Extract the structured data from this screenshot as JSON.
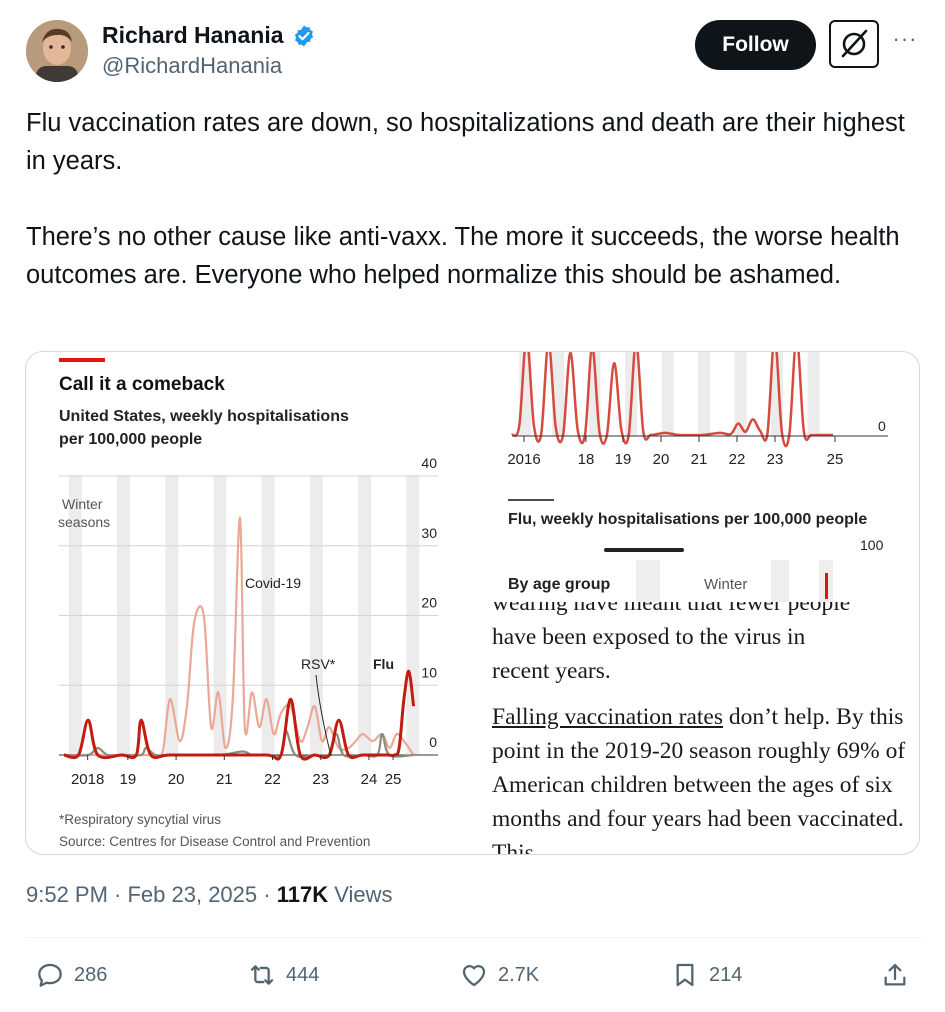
{
  "user": {
    "display_name": "Richard Hanania",
    "handle": "@RichardHanania",
    "avatar_icon": "avatar-photo",
    "verified_color": "#1d9bf0"
  },
  "buttons": {
    "follow_label": "Follow",
    "grok_icon": "grok-icon",
    "more_label": "···"
  },
  "tweet": {
    "paragraphs": [
      "Flu vaccination rates are down, so hospitalizations and death are their highest in years.",
      "There’s no other cause like anti-vaxx. The more it succeeds, the worse health outcomes are. Everyone who helped normalize this should be ashamed."
    ]
  },
  "media": {
    "left_chart": {
      "title": "Call it a comeback",
      "subtitle_line1": "United States, weekly hospitalisations",
      "subtitle_line2": "per 100,000 people",
      "winter_line1": "Winter",
      "winter_line2": "seasons",
      "footnote": "*Respiratory syncytial virus",
      "source": "Source: Centres for Disease Control and Prevention"
    },
    "right_chart": {
      "title": "Flu, weekly hospitalisations per 100,000 people",
      "by_age": "By age group",
      "winter": "Winter",
      "top_tick": "100"
    },
    "article": {
      "cut_line": "wearing have meant that fewer people",
      "line1": "have been exposed to the virus in",
      "line2": "recent years.",
      "link_text": "Falling vaccination rates",
      "para2_rest": " don’t help. By this point in the 2019-20 season roughly 69% of American children between the ages of six months and four years had been vaccinated. This"
    }
  },
  "chart_data": [
    {
      "type": "line",
      "title": "Call it a comeback",
      "subtitle": "United States, weekly hospitalisations per 100,000 people",
      "x_ticks": [
        "2018",
        "19",
        "20",
        "21",
        "22",
        "23",
        "24",
        "25"
      ],
      "y_ticks": [
        "40",
        "30",
        "20",
        "10",
        "0"
      ],
      "ylim": [
        0,
        40
      ],
      "annotations": [
        "Covid-19",
        "RSV*",
        "Flu"
      ],
      "shaded": "Winter seasons",
      "series": [
        {
          "name": "Covid-19",
          "color": "#eba897",
          "x": [
            2017.8,
            2018.0,
            2018.5,
            2019.0,
            2019.5,
            2019.7,
            2019.85,
            2020.0,
            2020.2,
            2020.35,
            2020.5,
            2020.7,
            2020.85,
            2021.0,
            2021.15,
            2021.3,
            2021.45,
            2021.55,
            2021.7,
            2021.85,
            2022.0,
            2022.15,
            2022.3,
            2022.5,
            2022.7,
            2022.85,
            2023.0,
            2023.15,
            2023.3,
            2023.5,
            2023.7,
            2023.85,
            2024.0,
            2024.2,
            2024.4,
            2024.55,
            2024.7,
            2024.85,
            2025.05
          ],
          "y": [
            0,
            0,
            0,
            0,
            0,
            0,
            0.5,
            8,
            2,
            7,
            19,
            20,
            4,
            9,
            1,
            8,
            34,
            4,
            9,
            4,
            8,
            3,
            6,
            7,
            2,
            4,
            7,
            2,
            4,
            1,
            1,
            2,
            3,
            2,
            3,
            1,
            3,
            2,
            0
          ]
        },
        {
          "name": "RSV*",
          "color": "#8a8a7d",
          "x": [
            2017.8,
            2018.3,
            2018.5,
            2018.7,
            2019.0,
            2019.4,
            2019.5,
            2019.7,
            2020.0,
            2021.0,
            2021.5,
            2021.7,
            2022.0,
            2022.3,
            2022.4,
            2022.6,
            2023.0,
            2023.3,
            2023.45,
            2023.6,
            2024.0,
            2024.3,
            2024.4,
            2024.55,
            2025.05
          ],
          "y": [
            0,
            0,
            1,
            0,
            0,
            0,
            1,
            0,
            0,
            0,
            0.5,
            0,
            0,
            0,
            3.5,
            0,
            0,
            0,
            3,
            0,
            0,
            0,
            3,
            0,
            0
          ]
        },
        {
          "name": "Flu",
          "color": "#c21c0f",
          "x": [
            2017.8,
            2018.1,
            2018.3,
            2018.5,
            2019.0,
            2019.3,
            2019.4,
            2019.6,
            2020.0,
            2021.0,
            2022.0,
            2022.3,
            2022.5,
            2022.7,
            2023.0,
            2023.3,
            2023.5,
            2023.7,
            2024.0,
            2024.5,
            2024.65,
            2024.75,
            2024.85,
            2024.95,
            2025.05
          ],
          "y": [
            0,
            0,
            5,
            0,
            0,
            0,
            5,
            0,
            0,
            0,
            0,
            0,
            8,
            0,
            0,
            0,
            5,
            0,
            0,
            0,
            0,
            1,
            8,
            12,
            7
          ]
        }
      ]
    },
    {
      "type": "line",
      "title": "Flu, weekly hospitalisations per 100,000 people",
      "x_ticks": [
        "2016",
        "18",
        "19",
        "20",
        "21",
        "22",
        "23",
        "25"
      ],
      "y_ticks": [
        "0"
      ],
      "series": [
        {
          "name": "",
          "color": "#d64a3f",
          "x": [
            2015.8,
            2016.0,
            2016.2,
            2016.4,
            2016.6,
            2016.8,
            2017.0,
            2017.2,
            2017.4,
            2017.6,
            2017.8,
            2018.0,
            2018.2,
            2018.4,
            2018.6,
            2018.8,
            2019.0,
            2019.2,
            2019.4,
            2019.6,
            2019.8,
            2020.0,
            2020.2,
            2020.4,
            2021.0,
            2021.5,
            2021.8,
            2022.0,
            2022.2,
            2022.4,
            2022.6,
            2022.8,
            2023.0,
            2023.2,
            2023.4,
            2023.6,
            2023.8,
            2024.0,
            2024.2,
            2024.4,
            2024.6
          ],
          "y": [
            1,
            10,
            95,
            10,
            2,
            90,
            8,
            1,
            80,
            6,
            1,
            85,
            3,
            1,
            70,
            5,
            1,
            90,
            4,
            1,
            2,
            3,
            2,
            1,
            1,
            3,
            2,
            12,
            4,
            16,
            5,
            2,
            95,
            3,
            1,
            95,
            4,
            1,
            1,
            1,
            1
          ]
        }
      ]
    }
  ],
  "timestamp": {
    "time_date": "9:52 PM · Feb 23, 2025 · ",
    "views_count": "117K",
    "views_label": " Views"
  },
  "actions": {
    "replies": "286",
    "reposts": "444",
    "likes": "2.7K",
    "bookmarks": "214"
  },
  "colors": {
    "text": "#0f1419",
    "secondary": "#536471",
    "economist_red": "#e3120b"
  }
}
